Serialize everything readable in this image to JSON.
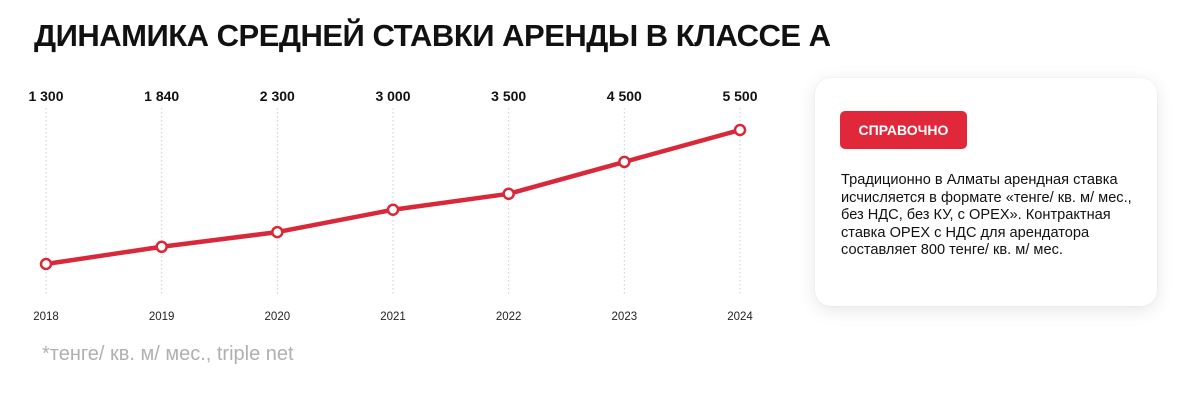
{
  "title": "ДИНАМИКА СРЕДНЕЙ СТАВКИ АРЕНДЫ В КЛАССЕ А",
  "footnote": "*тенге/ кв. м/ мес., triple net",
  "info": {
    "badge": "СПРАВОЧНО",
    "text": "Традиционно в Алматы арендная ставка исчисляется в формате «тенге/ кв. м/ мес., без НДС, без КУ, с OPEX». Контрактная ставка OPEX с НДС для арендатора составляет 800 тенге/ кв. м/ мес."
  },
  "colors": {
    "line": "#d9283a",
    "badge": "#e0283a",
    "grid": "#cfcfcf",
    "footnote": "#b0b0b0"
  },
  "chart_data": {
    "type": "line",
    "title": "ДИНАМИКА СРЕДНЕЙ СТАВКИ АРЕНДЫ В КЛАССЕ А",
    "x": [
      "2018",
      "2019",
      "2020",
      "2021",
      "2022",
      "2023",
      "2024"
    ],
    "values": [
      1300,
      1840,
      2300,
      3000,
      3500,
      4500,
      5500
    ],
    "value_labels": [
      "1 300",
      "1 840",
      "2 300",
      "3 000",
      "3 500",
      "4 500",
      "5 500"
    ],
    "xlabel": "",
    "ylabel": "",
    "grid": "vertical dotted",
    "legend": "none"
  }
}
